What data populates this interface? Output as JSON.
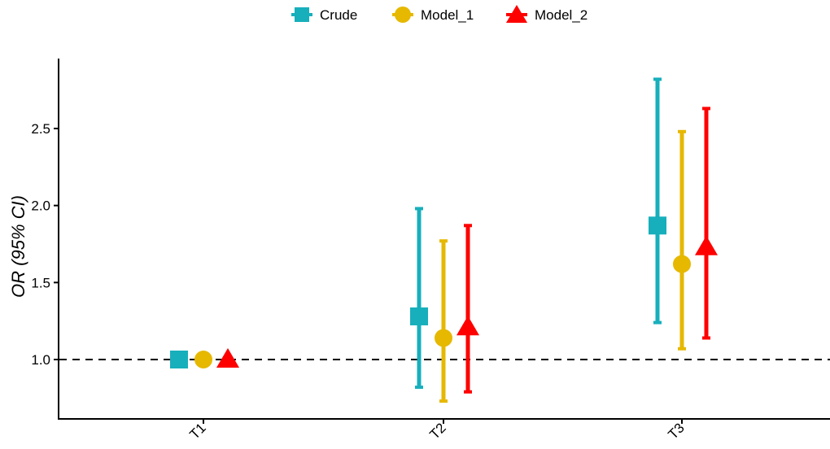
{
  "chart_data": {
    "type": "scatter",
    "subtype": "point-range / forest",
    "categories": [
      "T1",
      "T2",
      "T3"
    ],
    "ylabel": "OR (95% CI)",
    "xlabel": "",
    "ylim": [
      0.65,
      2.9
    ],
    "yticks": [
      1.0,
      1.5,
      2.0,
      2.5
    ],
    "ytick_labels": [
      "1.0",
      "1.5",
      "2.0",
      "2.5"
    ],
    "reference_line": {
      "y": 1.0,
      "style": "dashed"
    },
    "legend_position": "top",
    "grid": false,
    "series": [
      {
        "name": "Crude",
        "marker": "square",
        "color": "#17AFBC",
        "points": [
          {
            "category": "T1",
            "or": 1.0,
            "lower": null,
            "upper": null
          },
          {
            "category": "T2",
            "or": 1.28,
            "lower": 0.82,
            "upper": 1.98
          },
          {
            "category": "T3",
            "or": 1.87,
            "lower": 1.24,
            "upper": 2.82
          }
        ]
      },
      {
        "name": "Model_1",
        "marker": "circle",
        "color": "#E6B800",
        "points": [
          {
            "category": "T1",
            "or": 1.0,
            "lower": null,
            "upper": null
          },
          {
            "category": "T2",
            "or": 1.14,
            "lower": 0.73,
            "upper": 1.77
          },
          {
            "category": "T3",
            "or": 1.62,
            "lower": 1.07,
            "upper": 2.48
          }
        ]
      },
      {
        "name": "Model_2",
        "marker": "triangle",
        "color": "#FF0000",
        "points": [
          {
            "category": "T1",
            "or": 1.0,
            "lower": null,
            "upper": null
          },
          {
            "category": "T2",
            "or": 1.21,
            "lower": 0.79,
            "upper": 1.87
          },
          {
            "category": "T3",
            "or": 1.73,
            "lower": 1.14,
            "upper": 2.63
          }
        ]
      }
    ]
  }
}
